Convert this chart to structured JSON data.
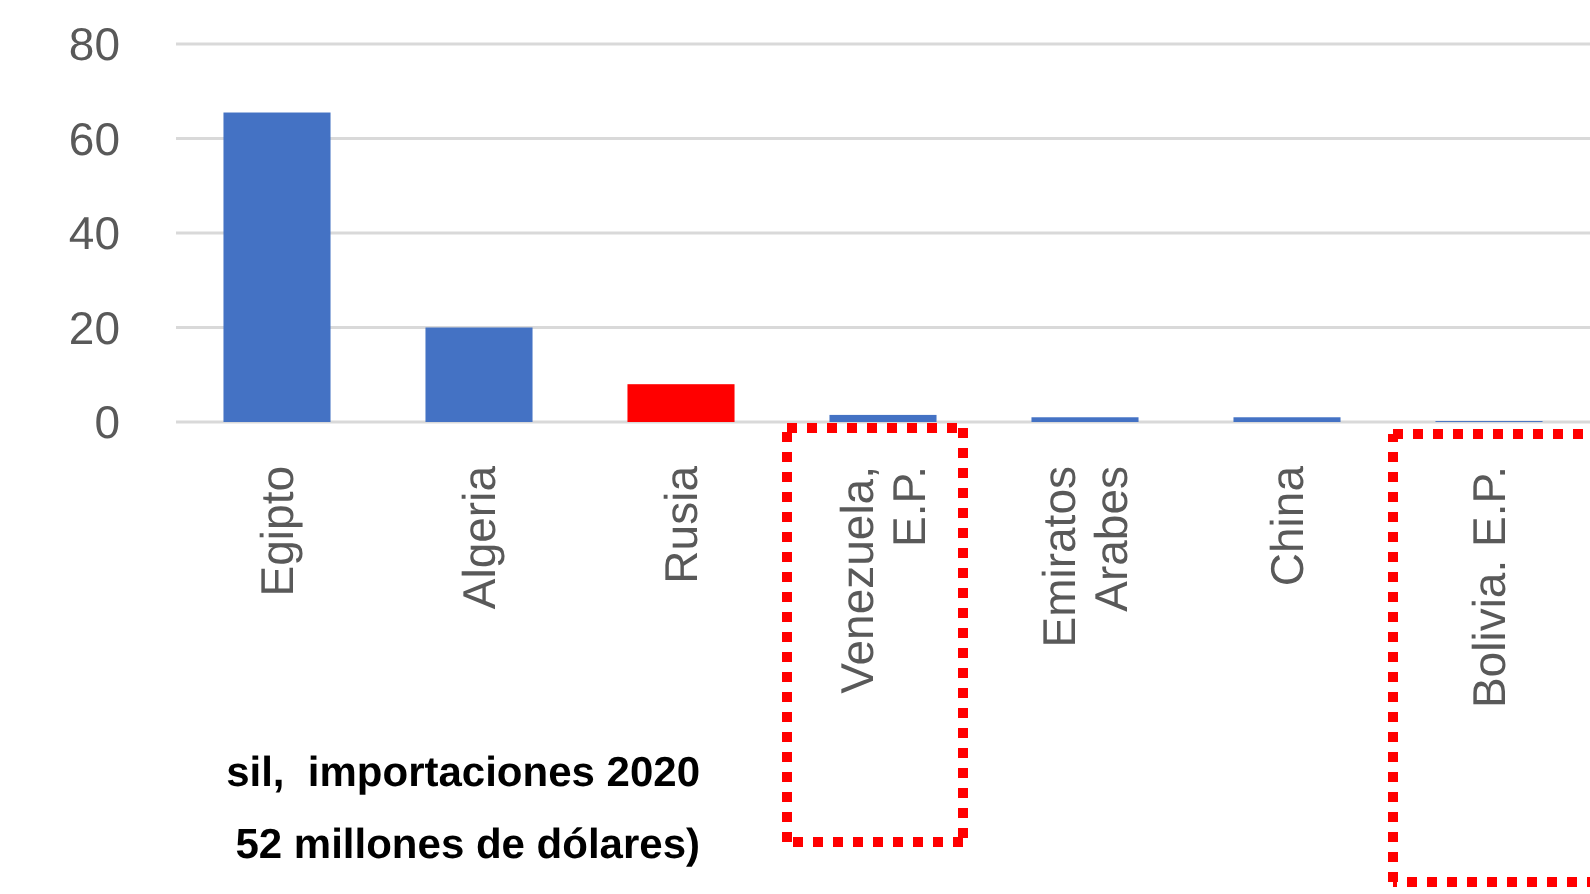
{
  "chart_data": {
    "type": "bar",
    "title": "sil,  importaciones 2020\n52 millones de dólares)",
    "categories": [
      "Egipto",
      "Algeria",
      "Rusia",
      "Venezuela,\nE.P.",
      "Emiratos\nArabes",
      "China",
      "Bolivia. E.P."
    ],
    "values": [
      65.5,
      20,
      8,
      1.5,
      1,
      1,
      0.2
    ],
    "colors": [
      "#4472c4",
      "#4472c4",
      "#ff0000",
      "#4472c4",
      "#4472c4",
      "#4472c4",
      "#4472c4"
    ],
    "ylim": [
      0,
      80
    ],
    "yticks": [
      0,
      20,
      40,
      60,
      80
    ],
    "grid": "y"
  }
}
